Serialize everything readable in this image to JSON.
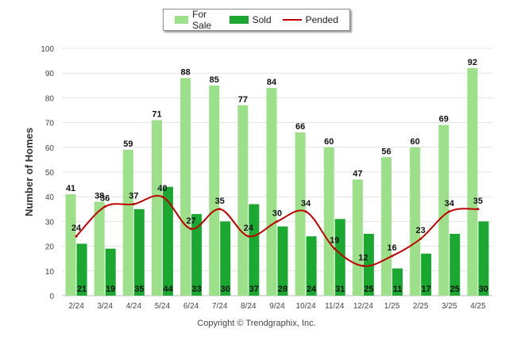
{
  "legend": {
    "for_sale": "For Sale",
    "sold": "Sold",
    "pended": "Pended"
  },
  "footer": {
    "copyright": "Copyright © Trendgraphix, Inc."
  },
  "colors": {
    "for_sale": "#9de08a",
    "sold": "#1aa831",
    "pended": "#c00000"
  },
  "chart_data": {
    "type": "bar",
    "ylabel": "Number of Homes",
    "ylim": [
      0,
      100
    ],
    "yticks": [
      0,
      10,
      20,
      30,
      40,
      50,
      60,
      70,
      80,
      90,
      100
    ],
    "grid": true,
    "legend_position": "top-center",
    "categories": [
      "2/24",
      "3/24",
      "4/24",
      "5/24",
      "6/24",
      "7/24",
      "8/24",
      "9/24",
      "10/24",
      "11/24",
      "12/24",
      "1/25",
      "2/25",
      "3/25",
      "4/25"
    ],
    "series": [
      {
        "name": "For Sale",
        "type": "bar",
        "values": [
          41,
          38,
          59,
          71,
          88,
          85,
          77,
          84,
          66,
          60,
          47,
          56,
          60,
          69,
          92
        ]
      },
      {
        "name": "Sold",
        "type": "bar",
        "values": [
          21,
          19,
          35,
          44,
          33,
          30,
          37,
          28,
          24,
          31,
          25,
          11,
          17,
          25,
          30
        ]
      },
      {
        "name": "Pended",
        "type": "line",
        "values": [
          24,
          36,
          37,
          40,
          27,
          35,
          24,
          30,
          34,
          19,
          12,
          16,
          23,
          34,
          35
        ]
      }
    ]
  }
}
